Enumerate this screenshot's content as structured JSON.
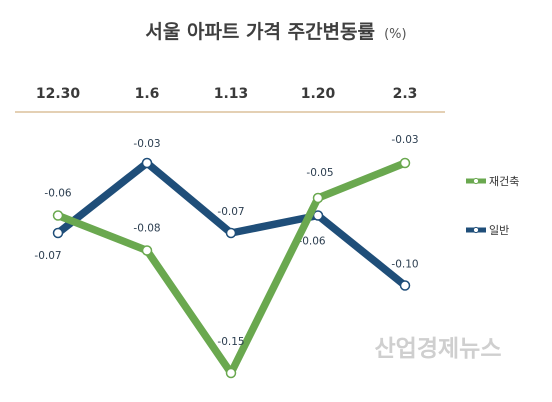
{
  "chart_data": {
    "type": "line",
    "title": "서울 아파트 가격 주간변동률",
    "unit": "(%)",
    "categories": [
      "12.30",
      "1.6",
      "1.13",
      "1.20",
      "2.3"
    ],
    "series": [
      {
        "name": "재건축",
        "values": [
          -0.06,
          -0.08,
          -0.15,
          -0.05,
          -0.03
        ],
        "labels": [
          "-0.06",
          "-0.08",
          "-0.15",
          "-0.05",
          "-0.03"
        ],
        "color": "#6aa84f"
      },
      {
        "name": "일반",
        "values": [
          -0.07,
          -0.03,
          -0.07,
          -0.06,
          -0.1
        ],
        "labels": [
          "-0.07",
          "-0.03",
          "-0.07",
          "-0.06",
          "-0.10"
        ],
        "color": "#1f4e79"
      }
    ],
    "separator_color": "#c9a06a",
    "legend_position": "right",
    "grid": false
  },
  "watermark": "산업경제뉴스"
}
